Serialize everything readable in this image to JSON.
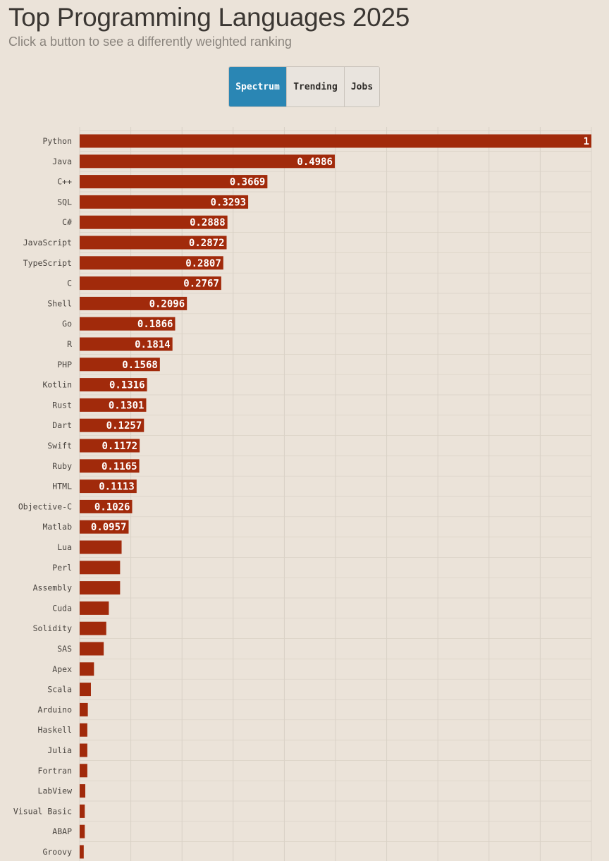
{
  "page": {
    "title": "Top Programming Languages 2025",
    "subtitle": "Click a button to see a differently weighted ranking"
  },
  "buttons": [
    {
      "label": "Spectrum",
      "active": true
    },
    {
      "label": "Trending",
      "active": false
    },
    {
      "label": "Jobs",
      "active": false
    }
  ],
  "colors": {
    "bar": "#a12a0b",
    "active_button": "#2a86b4",
    "background": "#ebe3d9",
    "grid": "#d9d1c6"
  },
  "chart_data": {
    "type": "bar",
    "orientation": "horizontal",
    "xlim": [
      0,
      1
    ],
    "grid": true,
    "categories": [
      "Python",
      "Java",
      "C++",
      "SQL",
      "C#",
      "JavaScript",
      "TypeScript",
      "C",
      "Shell",
      "Go",
      "R",
      "PHP",
      "Kotlin",
      "Rust",
      "Dart",
      "Swift",
      "Ruby",
      "HTML",
      "Objective-C",
      "Matlab",
      "Lua",
      "Perl",
      "Assembly",
      "Cuda",
      "Solidity",
      "SAS",
      "Apex",
      "Scala",
      "Arduino",
      "Haskell",
      "Julia",
      "Fortran",
      "LabView",
      "Visual Basic",
      "ABAP",
      "Groovy"
    ],
    "values": [
      1,
      0.4986,
      0.3669,
      0.3293,
      0.2888,
      0.2872,
      0.2807,
      0.2767,
      0.2096,
      0.1866,
      0.1814,
      0.1568,
      0.1316,
      0.1301,
      0.1257,
      0.1172,
      0.1165,
      0.1113,
      0.1026,
      0.0957,
      0.082,
      0.079,
      0.079,
      0.057,
      0.052,
      0.047,
      0.028,
      0.022,
      0.016,
      0.015,
      0.015,
      0.015,
      0.011,
      0.01,
      0.01,
      0.008
    ],
    "value_labels": [
      "1",
      "0.4986",
      "0.3669",
      "0.3293",
      "0.2888",
      "0.2872",
      "0.2807",
      "0.2767",
      "0.2096",
      "0.1866",
      "0.1814",
      "0.1568",
      "0.1316",
      "0.1301",
      "0.1257",
      "0.1172",
      "0.1165",
      "0.1113",
      "0.1026",
      "0.0957",
      "",
      "",
      "",
      "",
      "",
      "",
      "",
      "",
      "",
      "",
      "",
      "",
      "",
      "",
      "",
      ""
    ]
  }
}
